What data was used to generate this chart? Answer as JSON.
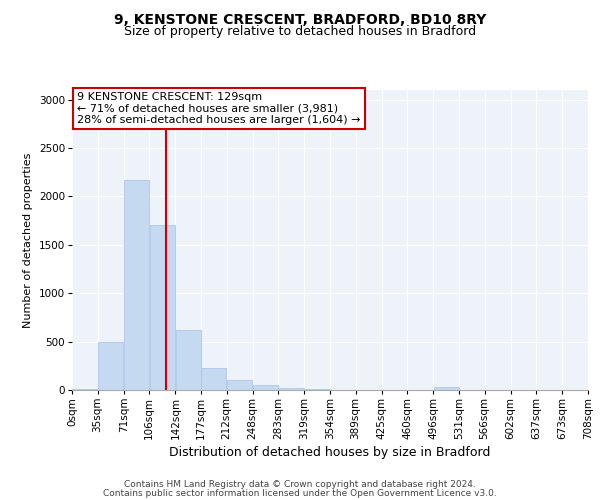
{
  "title1": "9, KENSTONE CRESCENT, BRADFORD, BD10 8RY",
  "title2": "Size of property relative to detached houses in Bradford",
  "xlabel": "Distribution of detached houses by size in Bradford",
  "ylabel": "Number of detached properties",
  "bin_edges": [
    0,
    35,
    71,
    106,
    142,
    177,
    212,
    248,
    283,
    319,
    354,
    389,
    425,
    460,
    496,
    531,
    566,
    602,
    637,
    673,
    708
  ],
  "bar_heights": [
    10,
    500,
    2175,
    1700,
    625,
    225,
    100,
    50,
    25,
    10,
    5,
    5,
    5,
    5,
    35,
    5,
    2,
    1,
    1,
    1
  ],
  "bar_color": "#c5d9f1",
  "bar_edge_color": "#aec6e8",
  "property_size": 129,
  "vline_color": "#cc0000",
  "annotation_line1": "9 KENSTONE CRESCENT: 129sqm",
  "annotation_line2": "← 71% of detached houses are smaller (3,981)",
  "annotation_line3": "28% of semi-detached houses are larger (1,604) →",
  "annotation_box_color": "#cc0000",
  "ylim": [
    0,
    3100
  ],
  "yticks": [
    0,
    500,
    1000,
    1500,
    2000,
    2500,
    3000
  ],
  "bg_color": "#eef2f9",
  "footer1": "Contains HM Land Registry data © Crown copyright and database right 2024.",
  "footer2": "Contains public sector information licensed under the Open Government Licence v3.0.",
  "title1_fontsize": 10,
  "title2_fontsize": 9,
  "xlabel_fontsize": 9,
  "ylabel_fontsize": 8,
  "tick_fontsize": 7.5,
  "annotation_fontsize": 8,
  "footer_fontsize": 6.5
}
